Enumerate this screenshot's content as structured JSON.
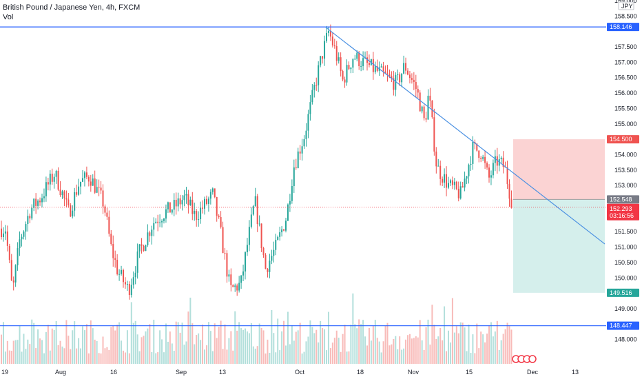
{
  "header": {
    "symbol_line": "British Pound / Japanese Yen, 4h, FXCM",
    "volume_label": "Vol"
  },
  "currency_badge": "JPY",
  "colors": {
    "up": "#26a69a",
    "down": "#ef5350",
    "up_vol": "#b2dfdb",
    "down_vol": "#f8bbb9",
    "trendline": "#4a90e2",
    "hline": "#2962ff",
    "stop_zone": "#fbd3d3",
    "target_zone": "#d5efec",
    "price_marker": "#f23645"
  },
  "chart_data": {
    "type": "candlestick",
    "symbol": "GBPJPY",
    "timeframe": "4h",
    "ylim": [
      147.75,
      159.0
    ],
    "y_ticks": [
      "159.000",
      "158.500",
      "157.500",
      "157.000",
      "156.500",
      "156.000",
      "155.500",
      "155.000",
      "154.000",
      "153.500",
      "153.000",
      "152.000",
      "151.500",
      "151.000",
      "150.500",
      "150.000",
      "149.000",
      "148.000"
    ],
    "x_labels": [
      "19",
      "Aug",
      "16",
      "Sep",
      "13",
      "Oct",
      "18",
      "Nov",
      "15",
      "Dec",
      "13"
    ],
    "horizontal_levels": [
      {
        "price": 158.146,
        "label": "158.146"
      },
      {
        "price": 148.447,
        "label": "148.447"
      }
    ],
    "trendline": {
      "from": {
        "date": "Oct 18",
        "price": 158.15
      },
      "to": {
        "date": "Dec 13",
        "price": 151.1
      }
    },
    "position": {
      "type": "short",
      "stop_label": "154.500",
      "entry_label": "152.548",
      "target_label": "149.516"
    },
    "current_price": {
      "label": "152.293",
      "countdown": "03:16:56"
    },
    "path_keypoints": [
      [
        "Jul 19",
        151.6
      ],
      [
        "Jul 21",
        149.5
      ],
      [
        "Jul 23",
        151.2
      ],
      [
        "Jul 26",
        152.2
      ],
      [
        "Jul 29",
        152.6
      ],
      [
        "Aug 2",
        153.4
      ],
      [
        "Aug 4",
        152.8
      ],
      [
        "Aug 6",
        152.1
      ],
      [
        "Aug 9",
        153.1
      ],
      [
        "Aug 12",
        153.3
      ],
      [
        "Aug 16",
        152.4
      ],
      [
        "Aug 18",
        151.0
      ],
      [
        "Aug 20",
        150.2
      ],
      [
        "Aug 23",
        149.6
      ],
      [
        "Aug 26",
        150.8
      ],
      [
        "Aug 30",
        151.8
      ],
      [
        "Sep 2",
        152.1
      ],
      [
        "Sep 5",
        152.3
      ],
      [
        "Sep 8",
        152.6
      ],
      [
        "Sep 11",
        152.0
      ],
      [
        "Sep 14",
        152.4
      ],
      [
        "Sep 16",
        152.7
      ],
      [
        "Sep 18",
        151.6
      ],
      [
        "Sep 21",
        149.6
      ],
      [
        "Sep 24",
        149.8
      ],
      [
        "Sep 26",
        151.2
      ],
      [
        "Sep 28",
        152.5
      ],
      [
        "Oct 1",
        150.3
      ],
      [
        "Oct 4",
        151.0
      ],
      [
        "Oct 7",
        152.0
      ],
      [
        "Oct 9",
        153.6
      ],
      [
        "Oct 12",
        154.6
      ],
      [
        "Oct 15",
        156.2
      ],
      [
        "Oct 17",
        157.2
      ],
      [
        "Oct 19",
        158.0
      ],
      [
        "Oct 21",
        157.3
      ],
      [
        "Oct 23",
        156.4
      ],
      [
        "Oct 26",
        157.2
      ],
      [
        "Oct 28",
        156.3
      ],
      [
        "Oct 30",
        156.9
      ],
      [
        "Nov 2",
        156.1
      ],
      [
        "Nov 4",
        155.0
      ],
      [
        "Nov 5",
        156.0
      ],
      [
        "Nov 7",
        153.6
      ],
      [
        "Nov 10",
        153.0
      ],
      [
        "Nov 13",
        152.7
      ],
      [
        "Nov 16",
        154.2
      ],
      [
        "Nov 18",
        154.1
      ],
      [
        "Nov 20",
        153.2
      ],
      [
        "Nov 22",
        153.8
      ],
      [
        "Nov 24",
        153.6
      ],
      [
        "Nov 26",
        152.3
      ]
    ]
  }
}
